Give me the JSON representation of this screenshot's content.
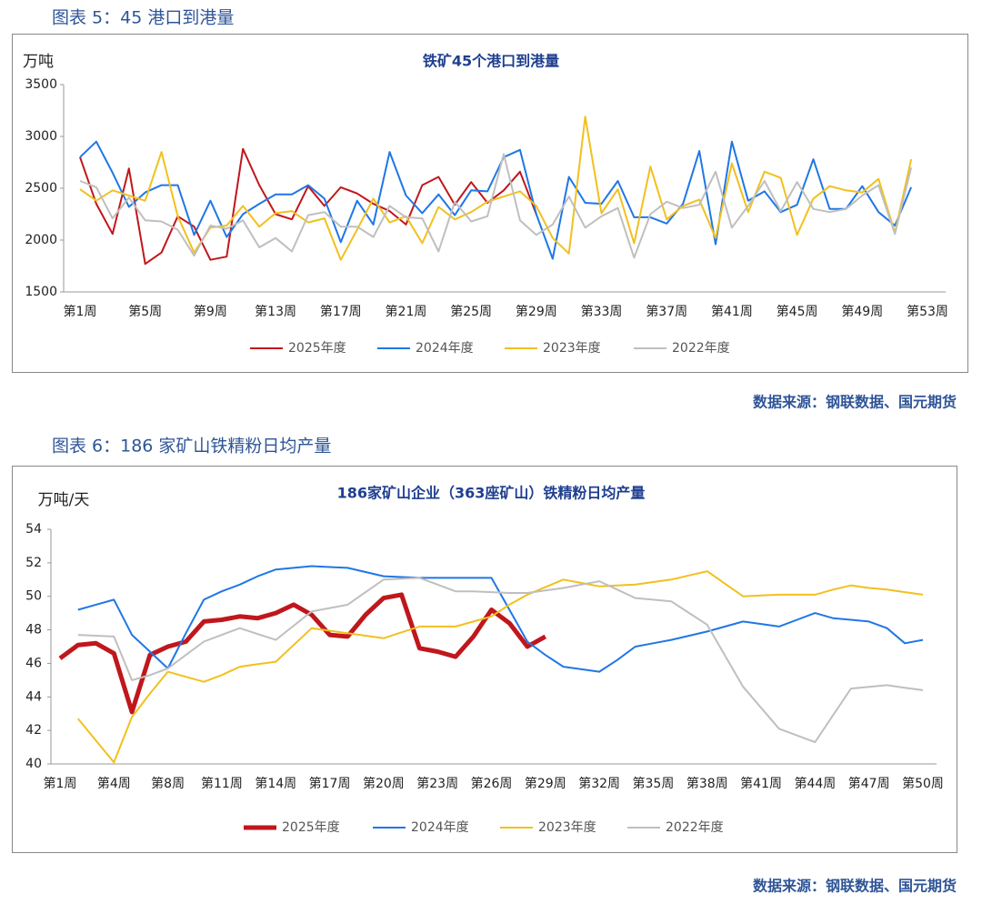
{
  "captions": [
    "图表 5：45 港口到港量",
    "图表 6：186 家矿山铁精粉日均产量"
  ],
  "sources": [
    "数据来源：钢联数据、国元期货",
    "数据来源：钢联数据、国元期货"
  ],
  "chart_data": [
    {
      "type": "line",
      "title": "铁矿45个港口到港量",
      "y_label": "万吨",
      "categories": [
        "第1周",
        null,
        null,
        null,
        "第5周",
        null,
        null,
        null,
        "第9周",
        null,
        null,
        null,
        "第13周",
        null,
        null,
        null,
        "第17周",
        null,
        null,
        null,
        "第21周",
        null,
        null,
        null,
        "第25周",
        null,
        null,
        null,
        "第29周",
        null,
        null,
        null,
        "第33周",
        null,
        null,
        null,
        "第37周",
        null,
        null,
        null,
        "第41周",
        null,
        null,
        null,
        "第45周",
        null,
        null,
        null,
        "第49周",
        null,
        null,
        null,
        "第53周"
      ],
      "ylim": [
        1500,
        3500
      ],
      "yticks": [
        1500,
        2000,
        2500,
        3000,
        3500
      ],
      "grid": false,
      "series": [
        {
          "name": "2025年度",
          "color": "#c0171c",
          "values": [
            2800,
            2350,
            2060,
            2690,
            1770,
            1880,
            2230,
            2130,
            1810,
            1840,
            2880,
            2530,
            2250,
            2200,
            2520,
            2330,
            2510,
            2450,
            2350,
            2280,
            2150,
            2530,
            2610,
            2340,
            2560,
            2360,
            2480,
            2660,
            2250,
            null,
            null,
            null,
            null,
            null,
            null,
            null,
            null,
            null,
            null,
            null,
            null,
            null,
            null,
            null,
            null,
            null,
            null,
            null,
            null,
            null,
            null,
            null,
            null
          ]
        },
        {
          "name": "2024年度",
          "color": "#1f77e6",
          "values": [
            2800,
            2950,
            2650,
            2320,
            2460,
            2530,
            2530,
            2050,
            2380,
            2030,
            2250,
            2350,
            2440,
            2440,
            2530,
            2400,
            1980,
            2380,
            2150,
            2850,
            2430,
            2260,
            2440,
            2240,
            2480,
            2470,
            2800,
            2870,
            2250,
            1820,
            2610,
            2360,
            2350,
            2570,
            2220,
            2220,
            2160,
            2350,
            2860,
            1960,
            2950,
            2380,
            2470,
            2270,
            2340,
            2780,
            2300,
            2300,
            2520,
            2270,
            2140,
            2510,
            null
          ]
        },
        {
          "name": "2023年度",
          "color": "#f2c01e",
          "values": [
            2490,
            2380,
            2480,
            2430,
            2380,
            2850,
            2230,
            1880,
            2120,
            2140,
            2330,
            2130,
            2260,
            2280,
            2170,
            2210,
            1810,
            2100,
            2400,
            2170,
            2230,
            1970,
            2320,
            2200,
            2270,
            2370,
            2420,
            2470,
            2330,
            2020,
            1870,
            3190,
            2260,
            2490,
            1970,
            2710,
            2200,
            2330,
            2390,
            2020,
            2740,
            2270,
            2660,
            2600,
            2050,
            2400,
            2520,
            2480,
            2460,
            2590,
            2070,
            2780,
            null
          ]
        },
        {
          "name": "2022年度",
          "color": "#bfbfbf",
          "values": [
            2570,
            2510,
            2210,
            2410,
            2190,
            2180,
            2100,
            1850,
            2140,
            2110,
            2190,
            1930,
            2020,
            1890,
            2240,
            2270,
            2130,
            2130,
            2030,
            2330,
            2220,
            2210,
            1890,
            2370,
            2180,
            2230,
            2830,
            2190,
            2050,
            2150,
            2420,
            2120,
            2230,
            2310,
            1830,
            2250,
            2370,
            2310,
            2340,
            2660,
            2120,
            2330,
            2570,
            2280,
            2560,
            2300,
            2270,
            2300,
            2430,
            2530,
            2060,
            2700,
            null
          ]
        }
      ]
    },
    {
      "type": "line",
      "title": "186家矿山企业（363座矿山）铁精粉日均产量",
      "y_label": "万吨/天",
      "categories": [
        "第1周",
        null,
        null,
        "第4周",
        null,
        null,
        "第8周",
        null,
        null,
        "第11周",
        null,
        null,
        "第14周",
        null,
        null,
        "第17周",
        null,
        null,
        "第20周",
        null,
        null,
        "第23周",
        null,
        null,
        "第26周",
        null,
        null,
        "第29周",
        null,
        null,
        "第32周",
        null,
        null,
        "第35周",
        null,
        null,
        "第38周",
        null,
        null,
        "第41周",
        null,
        null,
        "第44周",
        null,
        null,
        "第47周",
        null,
        null,
        "第50周"
      ],
      "ylim": [
        40,
        54
      ],
      "yticks": [
        40,
        42,
        44,
        46,
        48,
        50,
        52,
        54
      ],
      "grid": false,
      "series": [
        {
          "name": "2025年度",
          "color": "#c0171c",
          "width": 5,
          "values": [
            46.3,
            47.1,
            47.2,
            46.6,
            43.1,
            46.5,
            47.0,
            47.3,
            48.5,
            48.6,
            48.8,
            48.7,
            49.0,
            49.5,
            48.9,
            47.7,
            47.6,
            48.9,
            49.9,
            50.1,
            46.9,
            46.7,
            46.4,
            47.6,
            49.2,
            48.4,
            47.0,
            47.6,
            null,
            null,
            null,
            null,
            null,
            null,
            null,
            null,
            null,
            null,
            null,
            null,
            null,
            null,
            null,
            null,
            null,
            null,
            null,
            null,
            null
          ]
        },
        {
          "name": "2024年度",
          "color": "#1f77e6",
          "values": [
            null,
            49.2,
            49.5,
            49.8,
            47.7,
            46.7,
            45.7,
            47.8,
            49.8,
            50.3,
            50.7,
            51.2,
            51.6,
            51.7,
            51.8,
            51.75,
            51.7,
            51.45,
            51.2,
            51.15,
            51.1,
            51.1,
            51.1,
            51.1,
            51.1,
            49.2,
            47.3,
            46.5,
            45.8,
            45.65,
            45.5,
            46.2,
            47.0,
            47.2,
            47.4,
            47.65,
            47.9,
            48.2,
            48.5,
            48.35,
            48.2,
            48.6,
            49.0,
            48.7,
            48.6,
            48.5,
            48.1,
            47.2,
            47.4
          ]
        },
        {
          "name": "2023年度",
          "color": "#f2c01e",
          "values": [
            null,
            42.7,
            41.4,
            40.1,
            42.8,
            44.2,
            45.5,
            45.2,
            44.9,
            45.3,
            45.8,
            45.95,
            46.1,
            47.1,
            48.1,
            47.95,
            47.8,
            47.65,
            47.5,
            47.85,
            48.2,
            48.2,
            48.2,
            48.5,
            48.8,
            49.5,
            50.1,
            50.55,
            51.0,
            50.8,
            50.6,
            50.65,
            50.7,
            50.85,
            51.0,
            51.25,
            51.5,
            50.75,
            50.0,
            50.05,
            50.1,
            50.1,
            50.1,
            50.4,
            50.65,
            50.5,
            50.4,
            50.25,
            50.1
          ]
        },
        {
          "name": "2022年度",
          "color": "#bfbfbf",
          "values": [
            null,
            47.7,
            47.65,
            47.6,
            45.0,
            45.3,
            45.7,
            46.5,
            47.3,
            47.7,
            48.1,
            47.75,
            47.4,
            48.25,
            49.1,
            49.3,
            49.5,
            50.25,
            51.0,
            51.05,
            51.1,
            50.7,
            50.3,
            50.3,
            50.25,
            50.2,
            50.2,
            50.35,
            50.5,
            50.7,
            50.9,
            50.4,
            49.9,
            49.8,
            49.7,
            49.0,
            48.3,
            46.45,
            44.6,
            43.35,
            42.1,
            41.7,
            41.3,
            42.9,
            44.5,
            44.6,
            44.7,
            44.55,
            44.4
          ]
        }
      ]
    }
  ]
}
